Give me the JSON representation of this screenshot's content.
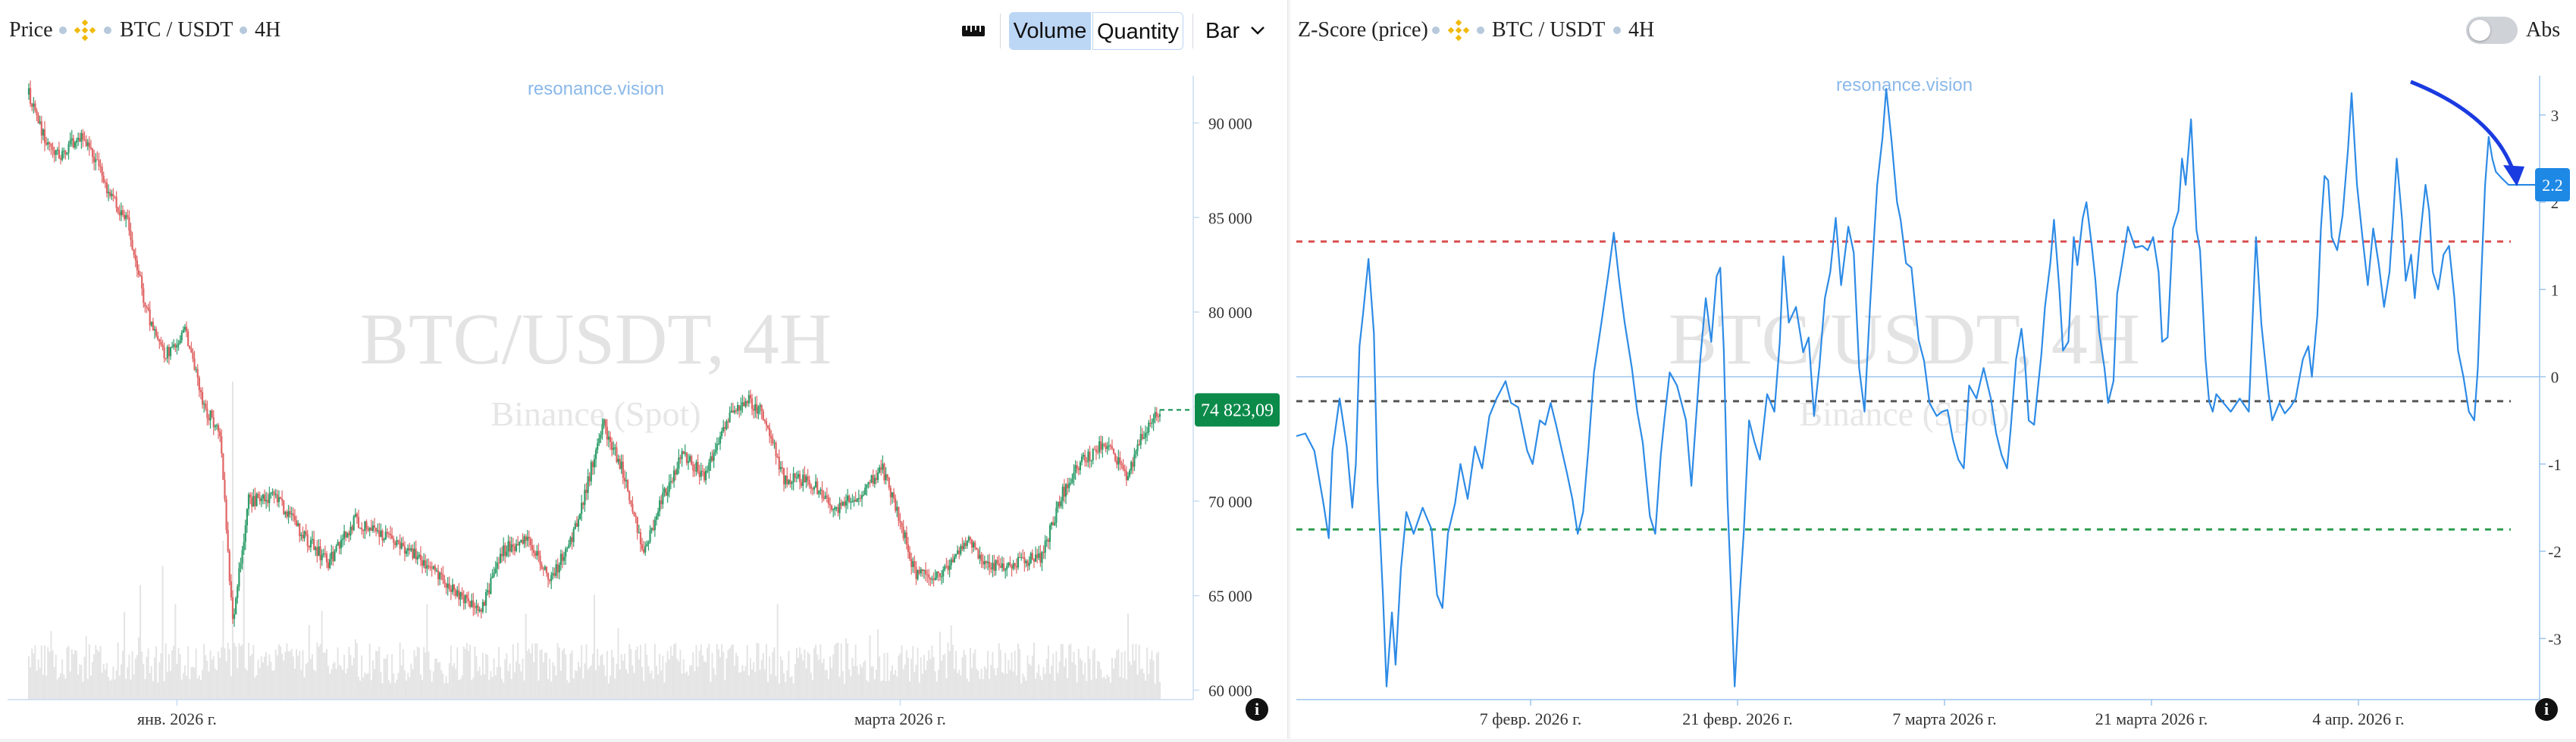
{
  "left_panel": {
    "header": {
      "title": "Price",
      "pair": "BTC / USDT",
      "interval": "4H",
      "volume_label": "Volume",
      "quantity_label": "Quantity",
      "bar_label": "Bar",
      "icons": [
        "binance-logo-icon",
        "ruler-icon",
        "chevron-down-icon"
      ]
    },
    "watermark_site": "resonance.vision",
    "watermark_title": "BTC/USDT, 4H",
    "watermark_exchange": "Binance (Spot)",
    "last_price_label": "74 823,09",
    "y_ticks": [
      "90 000",
      "85 000",
      "80 000",
      "75 000",
      "70 000",
      "65 000",
      "60 000"
    ],
    "x_ticks": [
      "янв. 2026 г.",
      "марта 2026 г."
    ],
    "info_label": "i"
  },
  "right_panel": {
    "header": {
      "title": "Z-Score (price)",
      "pair": "BTC / USDT",
      "interval": "4H",
      "abs_label": "Abs",
      "icons": [
        "binance-logo-icon",
        "toggle-switch-icon"
      ]
    },
    "watermark_site": "resonance.vision",
    "watermark_title": "BTC/USDT, 4H",
    "watermark_exchange": "Binance (Spot)",
    "last_value_label": "2.2",
    "y_ticks": [
      "3",
      "2",
      "1",
      "0",
      "-1",
      "-2",
      "-3"
    ],
    "x_ticks": [
      "7 февр. 2026 г.",
      "21 февр. 2026 г.",
      "7 марта 2026 г.",
      "21 марта 2026 г.",
      "4 апр. 2026 г."
    ],
    "info_label": "i"
  },
  "colors": {
    "up": "#2e9d6a",
    "down": "#e06464",
    "volume": "#e4e4e4",
    "line": "#2d8be6",
    "upper_band": "#d94c4c",
    "lower_band": "#2e9d4f",
    "mid_band": "#555555",
    "arrow": "#1a3be0",
    "last_price_bg": "#0b8a4a",
    "last_value_bg": "#1e88e5"
  },
  "chart_data": [
    {
      "type": "candlestick",
      "title": "Price",
      "ylim": [
        59500,
        92500
      ],
      "y_ticks": [
        60000,
        65000,
        70000,
        75000,
        80000,
        85000,
        90000
      ],
      "last_value": 74823.09,
      "close_anchors": [
        [
          0,
          91500
        ],
        [
          8,
          89500
        ],
        [
          20,
          88200
        ],
        [
          32,
          89300
        ],
        [
          43,
          88000
        ],
        [
          50,
          86300
        ],
        [
          62,
          84800
        ],
        [
          74,
          80000
        ],
        [
          86,
          77700
        ],
        [
          98,
          79000
        ],
        [
          110,
          75000
        ],
        [
          120,
          73700
        ],
        [
          128,
          63500
        ],
        [
          138,
          70000
        ],
        [
          155,
          70200
        ],
        [
          172,
          68200
        ],
        [
          188,
          66700
        ],
        [
          205,
          69000
        ],
        [
          222,
          68200
        ],
        [
          240,
          67300
        ],
        [
          255,
          66200
        ],
        [
          270,
          65100
        ],
        [
          283,
          64000
        ],
        [
          298,
          67400
        ],
        [
          312,
          68000
        ],
        [
          328,
          65800
        ],
        [
          345,
          68900
        ],
        [
          360,
          74200
        ],
        [
          372,
          71800
        ],
        [
          386,
          67400
        ],
        [
          398,
          70200
        ],
        [
          410,
          72400
        ],
        [
          424,
          71400
        ],
        [
          440,
          74700
        ],
        [
          452,
          75300
        ],
        [
          462,
          74500
        ],
        [
          474,
          71200
        ],
        [
          490,
          71100
        ],
        [
          506,
          69600
        ],
        [
          520,
          70300
        ],
        [
          536,
          71700
        ],
        [
          548,
          68600
        ],
        [
          556,
          66200
        ],
        [
          570,
          66000
        ],
        [
          590,
          67900
        ],
        [
          604,
          66500
        ],
        [
          620,
          66800
        ],
        [
          636,
          67000
        ],
        [
          648,
          70300
        ],
        [
          660,
          72000
        ],
        [
          676,
          73100
        ],
        [
          690,
          71300
        ],
        [
          700,
          73700
        ],
        [
          710,
          74823
        ]
      ],
      "volume_spikes": [
        [
          128,
          1.0
        ],
        [
          122,
          0.5
        ],
        [
          84,
          0.42
        ],
        [
          135,
          0.45
        ],
        [
          70,
          0.36
        ],
        [
          92,
          0.3
        ],
        [
          250,
          0.3
        ],
        [
          355,
          0.33
        ],
        [
          470,
          0.3
        ],
        [
          690,
          0.27
        ]
      ]
    },
    {
      "type": "line",
      "title": "Z-Score (price)",
      "ylim": [
        -3.7,
        3.45
      ],
      "y_ticks": [
        3,
        2,
        1,
        0,
        -1,
        -2,
        -3
      ],
      "last_value": 2.2,
      "bands": {
        "upper": 1.55,
        "middle": -0.28,
        "lower": -1.75
      },
      "points": [
        [
          0,
          -0.68
        ],
        [
          10,
          -0.65
        ],
        [
          20,
          -0.85
        ],
        [
          30,
          -1.45
        ],
        [
          36,
          -1.85
        ],
        [
          40,
          -0.85
        ],
        [
          48,
          -0.25
        ],
        [
          56,
          -0.8
        ],
        [
          62,
          -1.5
        ],
        [
          66,
          -1.0
        ],
        [
          70,
          0.35
        ],
        [
          74,
          0.72
        ],
        [
          80,
          1.35
        ],
        [
          86,
          0.5
        ],
        [
          90,
          -1.2
        ],
        [
          96,
          -2.5
        ],
        [
          100,
          -3.55
        ],
        [
          106,
          -2.7
        ],
        [
          110,
          -3.3
        ],
        [
          116,
          -2.2
        ],
        [
          122,
          -1.55
        ],
        [
          130,
          -1.8
        ],
        [
          140,
          -1.5
        ],
        [
          150,
          -1.75
        ],
        [
          156,
          -2.5
        ],
        [
          162,
          -2.65
        ],
        [
          168,
          -1.8
        ],
        [
          176,
          -1.45
        ],
        [
          182,
          -1.0
        ],
        [
          190,
          -1.4
        ],
        [
          198,
          -0.8
        ],
        [
          206,
          -1.05
        ],
        [
          214,
          -0.45
        ],
        [
          222,
          -0.25
        ],
        [
          232,
          -0.05
        ],
        [
          238,
          -0.3
        ],
        [
          246,
          -0.35
        ],
        [
          256,
          -0.85
        ],
        [
          262,
          -1.0
        ],
        [
          270,
          -0.5
        ],
        [
          276,
          -0.55
        ],
        [
          282,
          -0.3
        ],
        [
          288,
          -0.55
        ],
        [
          300,
          -1.1
        ],
        [
          306,
          -1.4
        ],
        [
          312,
          -1.8
        ],
        [
          318,
          -1.55
        ],
        [
          324,
          -0.8
        ],
        [
          330,
          0.05
        ],
        [
          338,
          0.6
        ],
        [
          346,
          1.18
        ],
        [
          352,
          1.65
        ],
        [
          358,
          1.1
        ],
        [
          364,
          0.62
        ],
        [
          372,
          0.1
        ],
        [
          378,
          -0.4
        ],
        [
          384,
          -0.75
        ],
        [
          392,
          -1.6
        ],
        [
          398,
          -1.8
        ],
        [
          404,
          -0.9
        ],
        [
          408,
          -0.5
        ],
        [
          414,
          0.05
        ],
        [
          422,
          -0.1
        ],
        [
          432,
          -0.5
        ],
        [
          438,
          -1.25
        ],
        [
          442,
          -0.65
        ],
        [
          448,
          0.22
        ],
        [
          454,
          0.9
        ],
        [
          460,
          0.4
        ],
        [
          466,
          1.15
        ],
        [
          470,
          1.25
        ],
        [
          474,
          0.3
        ],
        [
          478,
          -1.4
        ],
        [
          482,
          -2.45
        ],
        [
          486,
          -3.55
        ],
        [
          490,
          -2.75
        ],
        [
          496,
          -1.8
        ],
        [
          502,
          -0.5
        ],
        [
          508,
          -0.75
        ],
        [
          514,
          -0.95
        ],
        [
          522,
          -0.2
        ],
        [
          530,
          -0.4
        ],
        [
          536,
          0.4
        ],
        [
          540,
          1.38
        ],
        [
          546,
          0.62
        ],
        [
          554,
          0.8
        ],
        [
          562,
          0.28
        ],
        [
          568,
          0.45
        ],
        [
          574,
          -0.45
        ],
        [
          580,
          0.12
        ],
        [
          586,
          0.9
        ],
        [
          592,
          1.2
        ],
        [
          598,
          1.82
        ],
        [
          604,
          1.05
        ],
        [
          612,
          1.72
        ],
        [
          618,
          1.42
        ],
        [
          624,
          0.1
        ],
        [
          630,
          -0.4
        ],
        [
          636,
          0.8
        ],
        [
          640,
          1.5
        ],
        [
          644,
          2.2
        ],
        [
          650,
          2.75
        ],
        [
          654,
          3.3
        ],
        [
          660,
          2.7
        ],
        [
          666,
          2.0
        ],
        [
          670,
          1.8
        ],
        [
          676,
          1.3
        ],
        [
          682,
          1.25
        ],
        [
          690,
          0.42
        ],
        [
          696,
          0.18
        ],
        [
          702,
          -0.3
        ],
        [
          710,
          -0.45
        ],
        [
          716,
          -0.4
        ],
        [
          722,
          -0.38
        ],
        [
          728,
          -0.72
        ],
        [
          734,
          -0.95
        ],
        [
          740,
          -1.05
        ],
        [
          746,
          -0.1
        ],
        [
          754,
          -0.25
        ],
        [
          762,
          0.1
        ],
        [
          770,
          -0.25
        ],
        [
          776,
          -0.65
        ],
        [
          782,
          -0.9
        ],
        [
          788,
          -1.05
        ],
        [
          792,
          -0.6
        ],
        [
          798,
          0.2
        ],
        [
          804,
          0.55
        ],
        [
          808,
          0.15
        ],
        [
          812,
          -0.5
        ],
        [
          818,
          -0.55
        ],
        [
          826,
          0.25
        ],
        [
          830,
          0.8
        ],
        [
          836,
          1.3
        ],
        [
          840,
          1.8
        ],
        [
          846,
          1.0
        ],
        [
          850,
          0.3
        ],
        [
          856,
          0.4
        ],
        [
          862,
          1.6
        ],
        [
          866,
          1.28
        ],
        [
          872,
          1.82
        ],
        [
          876,
          2.0
        ],
        [
          882,
          1.5
        ],
        [
          886,
          1.1
        ],
        [
          890,
          0.52
        ],
        [
          896,
          0.1
        ],
        [
          900,
          -0.3
        ],
        [
          906,
          -0.05
        ],
        [
          910,
          0.95
        ],
        [
          916,
          1.32
        ],
        [
          922,
          1.72
        ],
        [
          930,
          1.48
        ],
        [
          938,
          1.5
        ],
        [
          944,
          1.45
        ],
        [
          950,
          1.6
        ],
        [
          956,
          1.2
        ],
        [
          960,
          0.4
        ],
        [
          966,
          0.45
        ],
        [
          972,
          1.7
        ],
        [
          978,
          1.9
        ],
        [
          982,
          2.5
        ],
        [
          986,
          2.2
        ],
        [
          992,
          2.95
        ],
        [
          998,
          1.68
        ],
        [
          1002,
          1.45
        ],
        [
          1008,
          0.2
        ],
        [
          1012,
          -0.28
        ],
        [
          1016,
          -0.4
        ],
        [
          1020,
          -0.2
        ],
        [
          1028,
          -0.3
        ],
        [
          1036,
          -0.4
        ],
        [
          1046,
          -0.25
        ],
        [
          1056,
          -0.4
        ],
        [
          1060,
          0.6
        ],
        [
          1064,
          1.6
        ],
        [
          1070,
          0.6
        ],
        [
          1078,
          -0.2
        ],
        [
          1082,
          -0.5
        ],
        [
          1090,
          -0.3
        ],
        [
          1096,
          -0.42
        ],
        [
          1102,
          -0.35
        ],
        [
          1108,
          -0.25
        ],
        [
          1116,
          0.2
        ],
        [
          1122,
          0.35
        ],
        [
          1126,
          0.0
        ],
        [
          1132,
          0.7
        ],
        [
          1136,
          1.7
        ],
        [
          1140,
          2.3
        ],
        [
          1144,
          2.25
        ],
        [
          1148,
          1.6
        ],
        [
          1154,
          1.45
        ],
        [
          1160,
          1.85
        ],
        [
          1166,
          2.6
        ],
        [
          1170,
          3.25
        ],
        [
          1176,
          2.2
        ],
        [
          1182,
          1.6
        ],
        [
          1188,
          1.05
        ],
        [
          1194,
          1.7
        ],
        [
          1200,
          1.3
        ],
        [
          1206,
          0.8
        ],
        [
          1212,
          1.2
        ],
        [
          1216,
          1.8
        ],
        [
          1220,
          2.5
        ],
        [
          1226,
          1.8
        ],
        [
          1230,
          1.1
        ],
        [
          1236,
          1.4
        ],
        [
          1240,
          0.9
        ],
        [
          1246,
          1.6
        ],
        [
          1252,
          2.2
        ],
        [
          1256,
          1.9
        ],
        [
          1260,
          1.2
        ],
        [
          1266,
          1.0
        ],
        [
          1272,
          1.4
        ],
        [
          1278,
          1.5
        ],
        [
          1284,
          0.9
        ],
        [
          1288,
          0.3
        ],
        [
          1294,
          0.0
        ],
        [
          1300,
          -0.4
        ],
        [
          1306,
          -0.5
        ],
        [
          1310,
          0.1
        ],
        [
          1314,
          1.2
        ],
        [
          1318,
          2.2
        ],
        [
          1322,
          2.75
        ],
        [
          1326,
          2.5
        ],
        [
          1330,
          2.35
        ],
        [
          1336,
          2.28
        ],
        [
          1344,
          2.2
        ]
      ]
    }
  ]
}
